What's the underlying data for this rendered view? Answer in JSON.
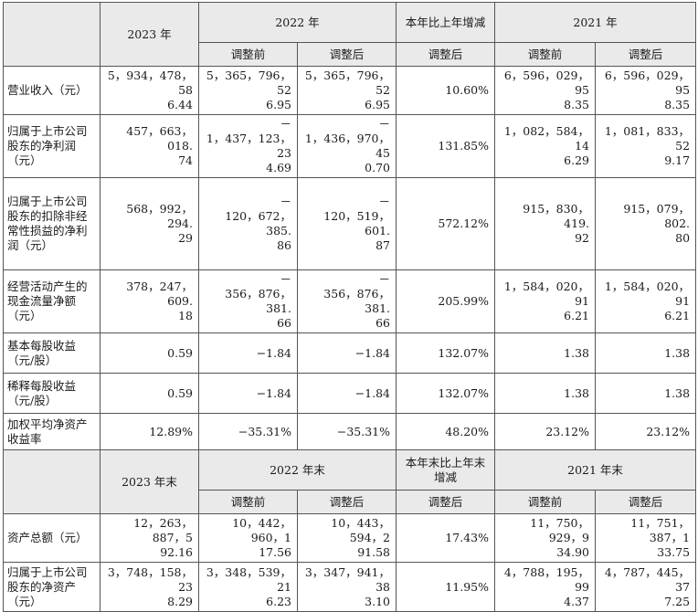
{
  "header1": {
    "col_2023": "2023 年",
    "col_2022": "2022 年",
    "col_change": "本年比上年增减",
    "col_2021": "2021 年",
    "before": "调整前",
    "after": "调整后",
    "change_after": "调整后"
  },
  "rows1": [
    {
      "label": "营业收入（元）",
      "v2023": "5，934，478，58\n6.44",
      "v2022_before": "5，365，796，52\n6.95",
      "v2022_after": "5，365，796，52\n6.95",
      "change": "10.60%",
      "v2021_before": "6，596，029，95\n8.35",
      "v2021_after": "6，596，029，95\n8.35"
    },
    {
      "label": "归属于上市公司股东的净利润（元）",
      "v2023": "457，663，018.\n74",
      "v2022_before": "－\n1，437，123，23\n4.69",
      "v2022_after": "－\n1，436，970，45\n0.70",
      "change": "131.85%",
      "v2021_before": "1，082，584，14\n6.29",
      "v2021_after": "1，081，833，52\n9.17"
    },
    {
      "label": "归属于上市公司股东的扣除非经常性损益的净利润（元）",
      "v2023": "568，992，294.\n29",
      "v2022_before": "－\n120，672，385.\n86",
      "v2022_after": "－\n120，519，601.\n87",
      "change": "572.12%",
      "v2021_before": "915，830，419.\n92",
      "v2021_after": "915，079，802.\n80"
    },
    {
      "label": "经营活动产生的现金流量净额（元）",
      "v2023": "378，247，609.\n18",
      "v2022_before": "－\n356，876，381.\n66",
      "v2022_after": "－\n356，876，381.\n66",
      "change": "205.99%",
      "v2021_before": "1，584，020，91\n6.21",
      "v2021_after": "1，584，020，91\n6.21"
    },
    {
      "label": "基本每股收益（元/股）",
      "v2023": "0.59",
      "v2022_before": "−1.84",
      "v2022_after": "−1.84",
      "change": "132.07%",
      "v2021_before": "1.38",
      "v2021_after": "1.38"
    },
    {
      "label": "稀释每股收益（元/股）",
      "v2023": "0.59",
      "v2022_before": "−1.84",
      "v2022_after": "−1.84",
      "change": "132.07%",
      "v2021_before": "1.38",
      "v2021_after": "1.38"
    },
    {
      "label": "加权平均净资产收益率",
      "v2023": "12.89%",
      "v2022_before": "−35.31%",
      "v2022_after": "−35.31%",
      "change": "48.20%",
      "v2021_before": "23.12%",
      "v2021_after": "23.12%"
    }
  ],
  "header2": {
    "col_2023": "2023 年末",
    "col_2022": "2022 年末",
    "col_change": "本年末比上年末增减",
    "col_2021": "2021 年末",
    "before": "调整前",
    "after": "调整后",
    "change_after": "调整后"
  },
  "rows2": [
    {
      "label": "资产总额（元）",
      "v2023": "12，263，887，5\n92.16",
      "v2022_before": "10，442，960，1\n17.56",
      "v2022_after": "10，443，594，2\n91.58",
      "change": "17.43%",
      "v2021_before": "11，750，929，9\n34.90",
      "v2021_after": "11，751，387，1\n33.75"
    },
    {
      "label": "归属于上市公司股东的净资产（元）",
      "v2023": "3，748，158，23\n8.29",
      "v2022_before": "3，348，539，21\n6.23",
      "v2022_after": "3，347，941，38\n3.10",
      "change": "11.95%",
      "v2021_before": "4，788，195，99\n4.37",
      "v2021_after": "4，787，445，37\n7.25"
    }
  ]
}
